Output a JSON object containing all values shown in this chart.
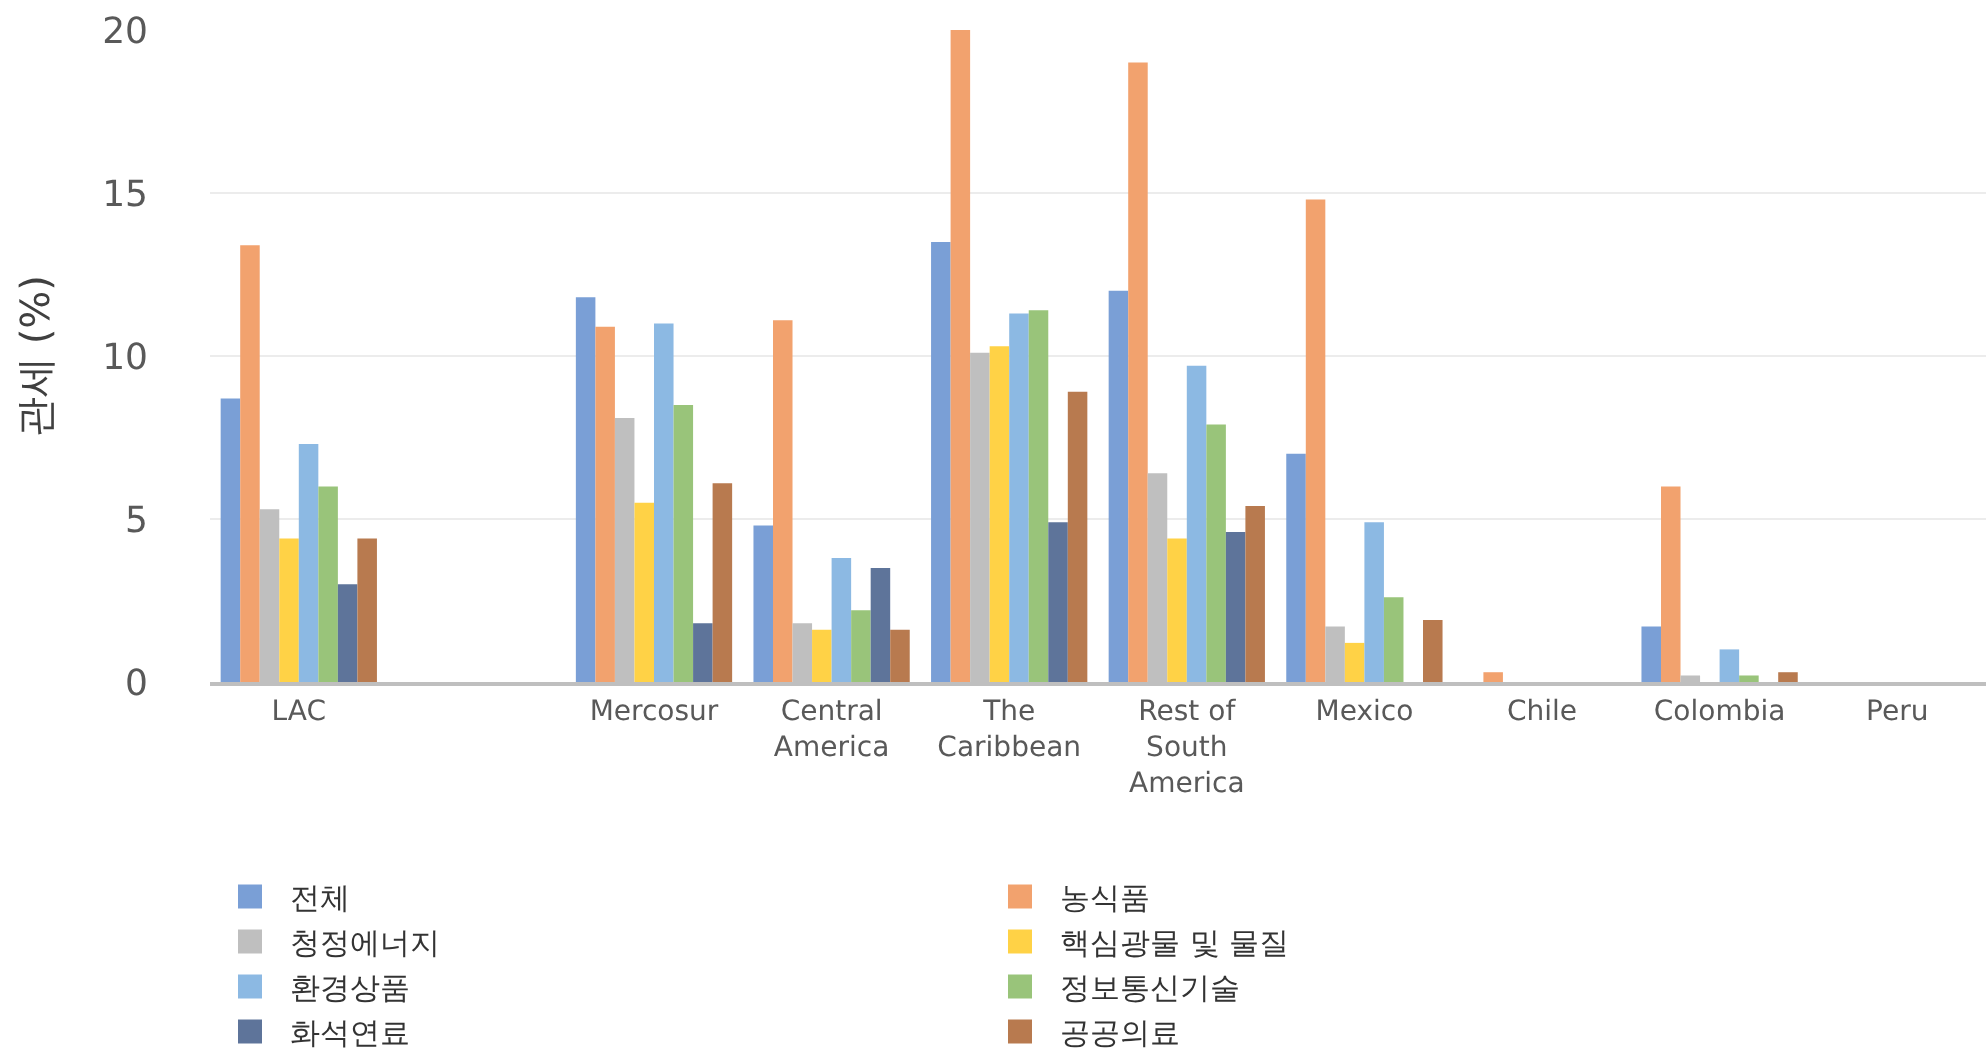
{
  "chart_data": {
    "type": "bar",
    "ylabel": "관세 (%)",
    "categories": [
      "LAC",
      null,
      "Mercosur",
      "Central America",
      "The Caribbean",
      "Rest of South America",
      "Mexico",
      "Chile",
      "Colombia",
      "Peru"
    ],
    "series": [
      {
        "name": "전체",
        "color": "#7a9fd6",
        "values": [
          8.7,
          null,
          11.8,
          4.8,
          13.5,
          12.0,
          7.0,
          0,
          1.7,
          0
        ]
      },
      {
        "name": "농식품",
        "color": "#f2a26e",
        "values": [
          13.4,
          null,
          10.9,
          11.1,
          20.0,
          19.0,
          14.8,
          0.3,
          6.0,
          0
        ]
      },
      {
        "name": "청정에너지",
        "color": "#bfbfbf",
        "values": [
          5.3,
          null,
          8.1,
          1.8,
          10.1,
          6.4,
          1.7,
          0,
          0.2,
          0
        ]
      },
      {
        "name": "핵심광물 및 물질",
        "color": "#ffd246",
        "values": [
          4.4,
          null,
          5.5,
          1.6,
          10.3,
          4.4,
          1.2,
          0,
          0,
          0
        ]
      },
      {
        "name": "환경상품",
        "color": "#8cb9e3",
        "values": [
          7.3,
          null,
          11.0,
          3.8,
          11.3,
          9.7,
          4.9,
          0,
          1.0,
          0
        ]
      },
      {
        "name": "정보통신기술",
        "color": "#99c47a",
        "values": [
          6.0,
          null,
          8.5,
          2.2,
          11.4,
          7.9,
          2.6,
          0,
          0.2,
          0
        ]
      },
      {
        "name": "화석연료",
        "color": "#5e749a",
        "values": [
          3.0,
          null,
          1.8,
          3.5,
          4.9,
          4.6,
          0,
          0,
          0,
          0
        ]
      },
      {
        "name": "공공의료",
        "color": "#b87a4f",
        "values": [
          4.4,
          null,
          6.1,
          1.6,
          8.9,
          5.4,
          1.9,
          0,
          0.3,
          0
        ]
      }
    ],
    "ylim": [
      0,
      20
    ],
    "yticks": [
      0,
      5,
      10,
      15,
      20
    ],
    "grid": "y",
    "legend": "bottom"
  }
}
